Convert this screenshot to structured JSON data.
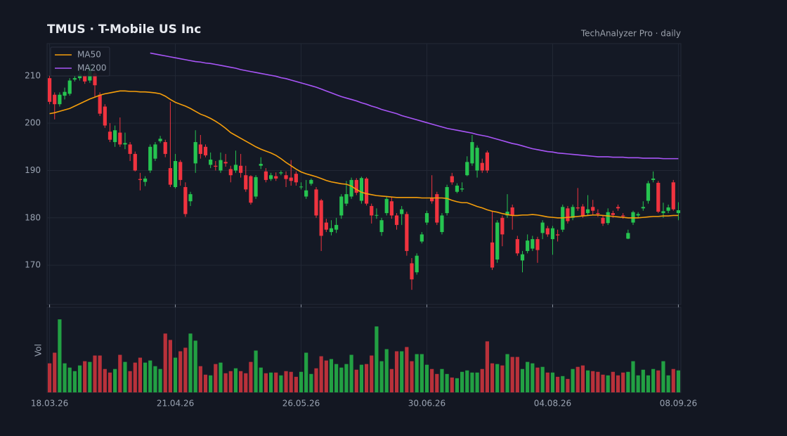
{
  "chart_data": {
    "type": "candlestick",
    "title": "TMUS  ·  T-Mobile US Inc",
    "subtitle": "TechAnalyzer Pro · daily",
    "categories": [
      "18.03.26",
      null,
      null,
      null,
      null,
      null,
      null,
      null,
      null,
      null,
      null,
      null,
      null,
      null,
      null,
      null,
      null,
      null,
      null,
      null,
      null,
      null,
      null,
      null,
      null,
      "21.04.26",
      null,
      null,
      null,
      null,
      null,
      null,
      null,
      null,
      null,
      null,
      null,
      null,
      null,
      null,
      null,
      null,
      null,
      null,
      null,
      null,
      null,
      null,
      null,
      null,
      "26.05.26",
      null,
      null,
      null,
      null,
      null,
      null,
      null,
      null,
      null,
      null,
      null,
      null,
      null,
      null,
      null,
      null,
      null,
      null,
      null,
      null,
      null,
      null,
      null,
      null,
      "30.06.26",
      null,
      null,
      null,
      null,
      null,
      null,
      null,
      null,
      null,
      null,
      null,
      null,
      null,
      null,
      null,
      null,
      null,
      null,
      null,
      null,
      null,
      null,
      null,
      null,
      "04.08.26",
      null,
      null,
      null,
      null,
      null,
      null,
      null,
      null,
      null,
      null,
      null,
      null,
      null,
      null,
      null,
      null,
      null,
      null,
      null,
      null,
      null,
      null,
      null,
      null,
      "08.09.26"
    ],
    "open": [
      209.5,
      206,
      204,
      205.8,
      206.2,
      209.2,
      209.5,
      210,
      209,
      210.5,
      206,
      203.5,
      198.2,
      196,
      198,
      195.5,
      195.5,
      193.5,
      188.2,
      187.6,
      190,
      192.5,
      196.2,
      196,
      190.5,
      186.5,
      191.8,
      186.5,
      183.5,
      191.5,
      195.5,
      195,
      191.2,
      191,
      190,
      191.8,
      190.3,
      190,
      191,
      189,
      188.8,
      184.5,
      191,
      189.8,
      188.2,
      188.8,
      189.4,
      189,
      188.5,
      189.3,
      186.5,
      184.5,
      187.2,
      186,
      183.7,
      179,
      177,
      177.5,
      180.5,
      183,
      184.5,
      188,
      183.6,
      188.3,
      182.5,
      180.5,
      177,
      181,
      183.5,
      180.5,
      180.8,
      180.8,
      170.4,
      168.5,
      175,
      179,
      184.2,
      185,
      177,
      181,
      188.8,
      185.5,
      186,
      189,
      191.5,
      190,
      191.6,
      193.8,
      174.8,
      171.2,
      180,
      180.5,
      182.2,
      175.5,
      171,
      173,
      173.5,
      175.5,
      176.8,
      177.8,
      175.5,
      176.5,
      177.5,
      182,
      180,
      182.2,
      182.4,
      181,
      182.3,
      181,
      180,
      178.9,
      181,
      182.3,
      180.5,
      175.6,
      179,
      180.5,
      182,
      183.6,
      188,
      187.4,
      181,
      181.5,
      187.5,
      181
    ],
    "high": [
      210,
      206.5,
      206.5,
      207.5,
      209.5,
      210,
      211,
      210.5,
      212.5,
      211,
      206.5,
      204,
      200,
      199.5,
      201.2,
      198,
      196,
      194,
      189.5,
      188.8,
      195.5,
      196,
      197.3,
      196.5,
      204.5,
      193.5,
      192.2,
      187.5,
      185.5,
      198.5,
      197.5,
      195.5,
      193.8,
      192,
      193.8,
      193.5,
      191,
      194.2,
      193.5,
      191,
      189,
      189,
      192.8,
      190.5,
      189.5,
      189.6,
      190,
      189.8,
      192.2,
      189.8,
      187.5,
      188,
      188.3,
      186.5,
      184,
      179.8,
      179.5,
      180,
      185,
      187.8,
      188.5,
      188.4,
      188.7,
      188.6,
      183,
      182,
      180,
      184.5,
      184.5,
      181,
      182.5,
      181.3,
      171.5,
      172.5,
      177,
      181.5,
      189,
      185.5,
      181,
      187,
      189.5,
      187.3,
      187.5,
      193,
      197.5,
      195.3,
      192.5,
      194.2,
      181.5,
      179.5,
      180.5,
      185,
      182.8,
      176.2,
      173,
      176.5,
      176.2,
      176,
      179.5,
      178.3,
      178.3,
      177.5,
      182.8,
      182.5,
      182.8,
      186.3,
      182.9,
      184.8,
      183.8,
      181.8,
      180.5,
      182,
      181.5,
      182.8,
      181,
      177.5,
      181.5,
      181.2,
      183.5,
      187.8,
      189.8,
      187.8,
      183.2,
      182.8,
      188,
      183.3
    ],
    "low": [
      204,
      200.8,
      203.5,
      205,
      205.8,
      208.8,
      209,
      208.3,
      208.5,
      205.5,
      201.5,
      199,
      196,
      195,
      195,
      194.5,
      192,
      189.8,
      185.8,
      186.7,
      189.5,
      192,
      195.8,
      192.8,
      186.5,
      186.2,
      186.8,
      180.2,
      182.5,
      189.5,
      192.5,
      192.8,
      190.5,
      190,
      189.5,
      190.8,
      187.5,
      189.5,
      188.5,
      185.5,
      182.8,
      184,
      190.3,
      187.5,
      187.8,
      187.8,
      189,
      186.5,
      186.8,
      186.8,
      186,
      184,
      186.8,
      180,
      173,
      177,
      176.3,
      176.8,
      179.8,
      182.5,
      184,
      184.8,
      183,
      182.6,
      178.8,
      179.8,
      176.2,
      180.5,
      179.8,
      177.5,
      178.5,
      172,
      164.8,
      168,
      174.6,
      178.5,
      183,
      178.5,
      176.5,
      180.5,
      187,
      185.2,
      185.5,
      188.8,
      191,
      188.5,
      189.5,
      189.5,
      169,
      170.5,
      174,
      180,
      177.5,
      172,
      168.5,
      172.5,
      173,
      170.5,
      175.5,
      176,
      172.2,
      175,
      177,
      178.8,
      179.5,
      181.5,
      180,
      180.5,
      180.5,
      180.2,
      178.3,
      178.5,
      180,
      181.5,
      179.8,
      175.5,
      178.5,
      180,
      181.5,
      183,
      187.5,
      181,
      180,
      181,
      181.5,
      179.5
    ],
    "close": [
      204.5,
      204,
      206,
      206.6,
      209,
      209.5,
      210.3,
      208.8,
      211.5,
      208,
      202,
      199.5,
      196.5,
      198.5,
      195.5,
      195.8,
      193.5,
      190,
      188,
      188.3,
      195,
      195.5,
      196.7,
      193.5,
      187,
      192,
      188,
      180.8,
      185,
      196,
      193.5,
      193.2,
      192.3,
      190.8,
      192.2,
      191.5,
      189,
      191.2,
      189.5,
      186,
      183.2,
      188.6,
      191.4,
      188,
      189,
      188.3,
      189.6,
      188.2,
      187.8,
      187.5,
      186.6,
      185.8,
      188,
      180.5,
      176.2,
      177.5,
      177.8,
      178.5,
      184.5,
      185,
      188,
      185.3,
      188.4,
      183,
      180.5,
      180.6,
      179.5,
      184,
      180.5,
      178.5,
      181.8,
      173,
      167,
      172,
      176.5,
      181,
      183.5,
      179,
      180.5,
      186.5,
      187.5,
      186.8,
      186.2,
      191.8,
      196,
      194.8,
      190,
      190,
      169.5,
      179,
      176.5,
      181.3,
      180.5,
      172.5,
      172.3,
      175.2,
      175.5,
      173.2,
      179,
      176.5,
      177.8,
      176.3,
      182.3,
      179.3,
      182.3,
      182,
      180.5,
      181.8,
      181.5,
      180.8,
      178.8,
      181.2,
      180.6,
      182,
      180.3,
      176.8,
      181.2,
      180.8,
      182.3,
      187.3,
      188.3,
      181.3,
      181.4,
      182.2,
      181.8,
      181.6
    ],
    "up_color": "#26c450",
    "down_color": "#f0333f",
    "series": [
      {
        "name": "MA50",
        "color": "#f59e0b",
        "values": [
          202,
          202.2,
          202.5,
          202.8,
          203.1,
          203.6,
          204.1,
          204.6,
          205.1,
          205.5,
          205.9,
          206.2,
          206.4,
          206.6,
          206.8,
          206.8,
          206.7,
          206.7,
          206.6,
          206.6,
          206.5,
          206.4,
          206.2,
          205.7,
          205.0,
          204.4,
          204.0,
          203.6,
          203.1,
          202.5,
          201.9,
          201.5,
          201.0,
          200.4,
          199.7,
          198.9,
          198.0,
          197.4,
          196.8,
          196.2,
          195.6,
          195.0,
          194.5,
          194.1,
          193.7,
          193.2,
          192.5,
          191.7,
          191.0,
          190.3,
          189.7,
          189.3,
          189.0,
          188.7,
          188.3,
          187.9,
          187.6,
          187.4,
          187.2,
          187.1,
          186.7,
          186.0,
          185.4,
          185.1,
          184.9,
          184.7,
          184.6,
          184.5,
          184.4,
          184.3,
          184.3,
          184.3,
          184.3,
          184.3,
          184.2,
          184.2,
          184.2,
          184.2,
          184.2,
          184.1,
          183.7,
          183.4,
          183.2,
          183.2,
          182.8,
          182.4,
          182.1,
          181.7,
          181.4,
          181.2,
          180.9,
          180.7,
          180.5,
          180.5,
          180.6,
          180.6,
          180.7,
          180.6,
          180.4,
          180.2,
          180.1,
          180.0,
          180.0,
          180.1,
          180.2,
          180.3,
          180.4,
          180.5,
          180.6,
          180.6,
          180.5,
          180.4,
          180.3,
          180.2,
          180.1,
          180.0,
          180.0,
          180.0,
          180.1,
          180.2,
          180.3,
          180.3,
          180.4,
          180.4,
          180.5,
          180.5
        ]
      },
      {
        "name": "MA200",
        "color": "#a855f7",
        "values": [
          null,
          null,
          null,
          null,
          null,
          null,
          null,
          null,
          null,
          null,
          null,
          null,
          null,
          null,
          null,
          null,
          null,
          null,
          null,
          null,
          214.8,
          214.6,
          214.4,
          214.2,
          214.0,
          213.8,
          213.6,
          213.4,
          213.2,
          213.0,
          212.9,
          212.7,
          212.6,
          212.4,
          212.2,
          212.0,
          211.8,
          211.6,
          211.3,
          211.1,
          210.9,
          210.7,
          210.5,
          210.3,
          210.1,
          209.9,
          209.6,
          209.4,
          209.1,
          208.8,
          208.5,
          208.2,
          207.9,
          207.6,
          207.2,
          206.8,
          206.4,
          206.0,
          205.6,
          205.3,
          205.0,
          204.7,
          204.3,
          204.0,
          203.6,
          203.3,
          202.9,
          202.6,
          202.3,
          202.0,
          201.6,
          201.3,
          201.0,
          200.7,
          200.4,
          200.1,
          199.8,
          199.5,
          199.2,
          198.9,
          198.7,
          198.5,
          198.3,
          198.1,
          197.9,
          197.6,
          197.4,
          197.2,
          196.9,
          196.6,
          196.3,
          196.0,
          195.7,
          195.5,
          195.2,
          194.9,
          194.6,
          194.4,
          194.2,
          194.0,
          193.9,
          193.7,
          193.6,
          193.5,
          193.4,
          193.3,
          193.2,
          193.1,
          193.0,
          192.9,
          192.9,
          192.9,
          192.8,
          192.8,
          192.8,
          192.7,
          192.7,
          192.7,
          192.6,
          192.6,
          192.6,
          192.6,
          192.5,
          192.5,
          192.5,
          192.5
        ]
      }
    ],
    "volume": {
      "label": "Vol",
      "up_color": "#22a043",
      "down_color": "#b9313a",
      "ylim": [
        0,
        12
      ],
      "values": [
        4.1,
        5.6,
        10.3,
        4.1,
        3.5,
        3.0,
        3.8,
        4.4,
        4.3,
        5.2,
        5.2,
        3.3,
        2.8,
        3.3,
        5.3,
        4.3,
        3.0,
        4.2,
        4.9,
        4.2,
        4.5,
        3.7,
        3.3,
        8.3,
        7.4,
        4.9,
        5.8,
        6.3,
        8.3,
        7.3,
        3.7,
        2.5,
        2.4,
        4.0,
        4.2,
        2.7,
        3.0,
        3.4,
        3.0,
        2.7,
        4.3,
        5.9,
        3.5,
        2.7,
        2.8,
        2.8,
        2.4,
        3.0,
        2.9,
        2.2,
        2.9,
        5.6,
        2.6,
        3.4,
        5.1,
        4.5,
        4.7,
        4.0,
        3.5,
        4.0,
        5.3,
        3.2,
        3.9,
        4.0,
        5.2,
        9.3,
        4.4,
        6.1,
        3.3,
        5.8,
        5.8,
        6.4,
        4.4,
        5.4,
        5.4,
        3.9,
        3.3,
        2.6,
        3.3,
        2.6,
        2.1,
        2.0,
        2.9,
        3.1,
        2.8,
        2.8,
        3.3,
        7.2,
        4.1,
        4.0,
        3.8,
        5.4,
        5.0,
        5.0,
        3.3,
        4.3,
        4.1,
        3.5,
        3.6,
        2.8,
        2.8,
        2.2,
        2.3,
        1.9,
        3.3,
        3.6,
        3.8,
        3.1,
        3.0,
        2.9,
        2.5,
        2.4,
        2.9,
        2.4,
        2.8,
        2.9,
        4.4,
        2.4,
        3.2,
        2.4,
        3.3,
        3.1,
        4.4,
        2.4,
        3.3,
        3.1
      ]
    },
    "ylim": [
      161.7,
      216.8
    ],
    "yticks": [
      170,
      180,
      190,
      200,
      210
    ],
    "grid": true,
    "legend": "upper left"
  }
}
